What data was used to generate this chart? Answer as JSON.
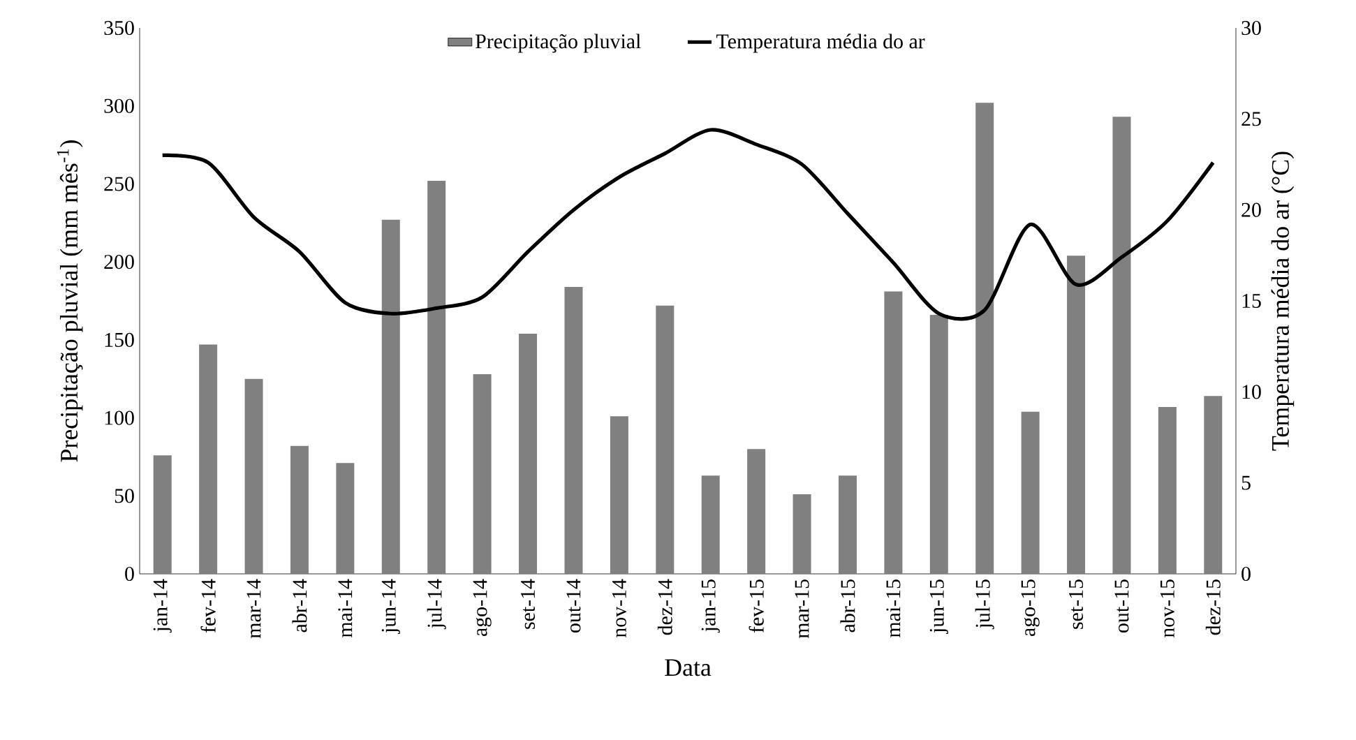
{
  "chart_data": {
    "type": "bar",
    "xlabel": "Data",
    "ylabel": "Precipitação pluvial (mm mês$^{-1}$)",
    "y2label": "Temperatura média do ar (°C)",
    "categories": [
      "jan-14",
      "fev-14",
      "mar-14",
      "abr-14",
      "mai-14",
      "jun-14",
      "jul-14",
      "ago-14",
      "set-14",
      "out-14",
      "nov-14",
      "dez-14",
      "jan-15",
      "fev-15",
      "mar-15",
      "abr-15",
      "mai-15",
      "jun-15",
      "jul-15",
      "ago-15",
      "set-15",
      "out-15",
      "nov-15",
      "dez-15"
    ],
    "series": [
      {
        "name": "Precipitação pluvial",
        "color": "#808080",
        "values": [
          76,
          147,
          125,
          82,
          71,
          227,
          252,
          128,
          154,
          184,
          101,
          172,
          63,
          80,
          51,
          63,
          181,
          166,
          302,
          104,
          204,
          293,
          107,
          114
        ]
      },
      {
        "name": "Temperatura média do ar",
        "type": "line",
        "axis": "y2",
        "color": "#000000",
        "values": [
          23.0,
          22.6,
          19.6,
          17.7,
          14.9,
          14.3,
          14.6,
          15.2,
          17.7,
          20.0,
          21.8,
          23.1,
          24.4,
          23.6,
          22.5,
          19.8,
          17.1,
          14.3,
          14.5,
          19.2,
          15.9,
          17.4,
          19.4,
          22.6
        ]
      }
    ],
    "ylim": [
      0,
      350
    ],
    "yticks": [
      0,
      50,
      100,
      150,
      200,
      250,
      300,
      350
    ],
    "y2lim": [
      0,
      30
    ],
    "y2ticks": [
      0,
      5,
      10,
      15,
      20,
      25,
      30
    ],
    "grid": false,
    "legend": "top"
  }
}
